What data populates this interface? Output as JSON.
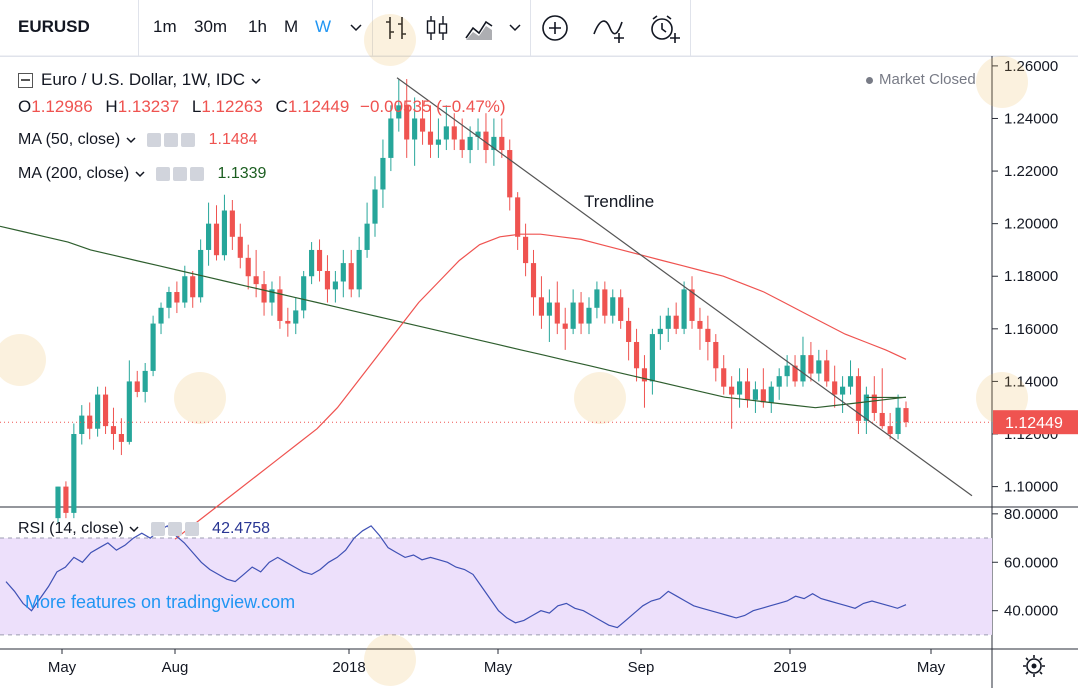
{
  "toolbar": {
    "symbol": "EURUSD",
    "intervals": [
      "1m",
      "30m",
      "1h",
      "M",
      "W"
    ],
    "active_interval": "W",
    "accent": "#2196f3"
  },
  "legend": {
    "title": "Euro / U.S. Dollar, 1W, IDC",
    "ohlc": {
      "o_label": "O",
      "o": "1.12986",
      "h_label": "H",
      "h": "1.13237",
      "l_label": "L",
      "l": "1.12263",
      "c_label": "C",
      "c": "1.12449",
      "change": "−0.00535 (−0.47%)"
    },
    "market_status": "Market Closed",
    "ma50": {
      "label": "MA (50, close)",
      "value": "1.1484",
      "color": "#ef5350"
    },
    "ma200": {
      "label": "MA (200, close)",
      "value": "1.1339",
      "color": "#1b5e20"
    },
    "rsi": {
      "label": "RSI (14, close)",
      "value": "42.4758",
      "color": "#283593"
    }
  },
  "watermark": "More features on tradingview.com",
  "chart_data": {
    "type": "candlestick",
    "price_axis_ticks": [
      "1.26000",
      "1.24000",
      "1.22000",
      "1.20000",
      "1.18000",
      "1.16000",
      "1.14000",
      "1.12000",
      "1.10000"
    ],
    "price_range": [
      1.093,
      1.263
    ],
    "last_price": "1.12449",
    "rsi_axis_ticks": [
      "80.0000",
      "60.0000",
      "40.0000"
    ],
    "rsi_range": [
      25,
      82
    ],
    "rsi_band": [
      30,
      70
    ],
    "x_labels": [
      "May",
      "Aug",
      "2018",
      "May",
      "Sep",
      "2019",
      "May"
    ],
    "annotation": "Trendline",
    "trendline": {
      "from": [
        "2018-01-22",
        1.2555
      ],
      "to": [
        "2019-05-20",
        1.0965
      ]
    },
    "colors": {
      "up": "#26a69a",
      "down": "#ef5350",
      "ma50": "#ef5350",
      "ma200": "#2e5e2e",
      "rsi": "#3f51b5",
      "trendline": "#555555"
    },
    "candles": [
      {
        "o": 1.088,
        "h": 1.1,
        "l": 1.086,
        "c": 1.1
      },
      {
        "o": 1.1,
        "h": 1.102,
        "l": 1.088,
        "c": 1.09
      },
      {
        "o": 1.09,
        "h": 1.124,
        "l": 1.088,
        "c": 1.12
      },
      {
        "o": 1.12,
        "h": 1.131,
        "l": 1.116,
        "c": 1.127
      },
      {
        "o": 1.127,
        "h": 1.132,
        "l": 1.118,
        "c": 1.122
      },
      {
        "o": 1.122,
        "h": 1.138,
        "l": 1.119,
        "c": 1.135
      },
      {
        "o": 1.135,
        "h": 1.138,
        "l": 1.12,
        "c": 1.123
      },
      {
        "o": 1.123,
        "h": 1.13,
        "l": 1.114,
        "c": 1.12
      },
      {
        "o": 1.12,
        "h": 1.126,
        "l": 1.112,
        "c": 1.117
      },
      {
        "o": 1.117,
        "h": 1.148,
        "l": 1.116,
        "c": 1.14
      },
      {
        "o": 1.14,
        "h": 1.144,
        "l": 1.134,
        "c": 1.136
      },
      {
        "o": 1.136,
        "h": 1.147,
        "l": 1.132,
        "c": 1.144
      },
      {
        "o": 1.144,
        "h": 1.165,
        "l": 1.142,
        "c": 1.162
      },
      {
        "o": 1.162,
        "h": 1.17,
        "l": 1.158,
        "c": 1.168
      },
      {
        "o": 1.168,
        "h": 1.176,
        "l": 1.164,
        "c": 1.174
      },
      {
        "o": 1.174,
        "h": 1.178,
        "l": 1.166,
        "c": 1.17
      },
      {
        "o": 1.17,
        "h": 1.184,
        "l": 1.168,
        "c": 1.18
      },
      {
        "o": 1.18,
        "h": 1.182,
        "l": 1.168,
        "c": 1.172
      },
      {
        "o": 1.172,
        "h": 1.194,
        "l": 1.17,
        "c": 1.19
      },
      {
        "o": 1.19,
        "h": 1.208,
        "l": 1.184,
        "c": 1.2
      },
      {
        "o": 1.2,
        "h": 1.207,
        "l": 1.186,
        "c": 1.188
      },
      {
        "o": 1.188,
        "h": 1.211,
        "l": 1.186,
        "c": 1.205
      },
      {
        "o": 1.205,
        "h": 1.209,
        "l": 1.19,
        "c": 1.195
      },
      {
        "o": 1.195,
        "h": 1.2,
        "l": 1.183,
        "c": 1.187
      },
      {
        "o": 1.187,
        "h": 1.192,
        "l": 1.175,
        "c": 1.18
      },
      {
        "o": 1.18,
        "h": 1.19,
        "l": 1.172,
        "c": 1.177
      },
      {
        "o": 1.177,
        "h": 1.182,
        "l": 1.165,
        "c": 1.17
      },
      {
        "o": 1.17,
        "h": 1.178,
        "l": 1.165,
        "c": 1.175
      },
      {
        "o": 1.175,
        "h": 1.18,
        "l": 1.16,
        "c": 1.163
      },
      {
        "o": 1.163,
        "h": 1.168,
        "l": 1.157,
        "c": 1.162
      },
      {
        "o": 1.162,
        "h": 1.172,
        "l": 1.158,
        "c": 1.167
      },
      {
        "o": 1.167,
        "h": 1.182,
        "l": 1.164,
        "c": 1.18
      },
      {
        "o": 1.18,
        "h": 1.193,
        "l": 1.177,
        "c": 1.19
      },
      {
        "o": 1.19,
        "h": 1.194,
        "l": 1.178,
        "c": 1.182
      },
      {
        "o": 1.182,
        "h": 1.188,
        "l": 1.17,
        "c": 1.175
      },
      {
        "o": 1.175,
        "h": 1.182,
        "l": 1.17,
        "c": 1.178
      },
      {
        "o": 1.178,
        "h": 1.19,
        "l": 1.172,
        "c": 1.185
      },
      {
        "o": 1.185,
        "h": 1.19,
        "l": 1.172,
        "c": 1.175
      },
      {
        "o": 1.175,
        "h": 1.195,
        "l": 1.172,
        "c": 1.19
      },
      {
        "o": 1.19,
        "h": 1.208,
        "l": 1.187,
        "c": 1.2
      },
      {
        "o": 1.2,
        "h": 1.218,
        "l": 1.195,
        "c": 1.213
      },
      {
        "o": 1.213,
        "h": 1.232,
        "l": 1.206,
        "c": 1.225
      },
      {
        "o": 1.225,
        "h": 1.245,
        "l": 1.22,
        "c": 1.24
      },
      {
        "o": 1.24,
        "h": 1.255,
        "l": 1.235,
        "c": 1.245
      },
      {
        "o": 1.245,
        "h": 1.255,
        "l": 1.225,
        "c": 1.232
      },
      {
        "o": 1.232,
        "h": 1.248,
        "l": 1.222,
        "c": 1.24
      },
      {
        "o": 1.24,
        "h": 1.247,
        "l": 1.23,
        "c": 1.235
      },
      {
        "o": 1.235,
        "h": 1.245,
        "l": 1.225,
        "c": 1.23
      },
      {
        "o": 1.23,
        "h": 1.24,
        "l": 1.225,
        "c": 1.232
      },
      {
        "o": 1.232,
        "h": 1.245,
        "l": 1.228,
        "c": 1.237
      },
      {
        "o": 1.237,
        "h": 1.242,
        "l": 1.228,
        "c": 1.232
      },
      {
        "o": 1.232,
        "h": 1.24,
        "l": 1.225,
        "c": 1.228
      },
      {
        "o": 1.228,
        "h": 1.237,
        "l": 1.223,
        "c": 1.233
      },
      {
        "o": 1.233,
        "h": 1.24,
        "l": 1.228,
        "c": 1.235
      },
      {
        "o": 1.235,
        "h": 1.242,
        "l": 1.223,
        "c": 1.228
      },
      {
        "o": 1.228,
        "h": 1.24,
        "l": 1.222,
        "c": 1.233
      },
      {
        "o": 1.233,
        "h": 1.24,
        "l": 1.225,
        "c": 1.228
      },
      {
        "o": 1.228,
        "h": 1.232,
        "l": 1.205,
        "c": 1.21
      },
      {
        "o": 1.21,
        "h": 1.212,
        "l": 1.19,
        "c": 1.195
      },
      {
        "o": 1.195,
        "h": 1.2,
        "l": 1.18,
        "c": 1.185
      },
      {
        "o": 1.185,
        "h": 1.19,
        "l": 1.165,
        "c": 1.172
      },
      {
        "o": 1.172,
        "h": 1.18,
        "l": 1.16,
        "c": 1.165
      },
      {
        "o": 1.165,
        "h": 1.175,
        "l": 1.155,
        "c": 1.17
      },
      {
        "o": 1.17,
        "h": 1.178,
        "l": 1.158,
        "c": 1.162
      },
      {
        "o": 1.162,
        "h": 1.168,
        "l": 1.152,
        "c": 1.16
      },
      {
        "o": 1.16,
        "h": 1.175,
        "l": 1.158,
        "c": 1.17
      },
      {
        "o": 1.17,
        "h": 1.174,
        "l": 1.158,
        "c": 1.162
      },
      {
        "o": 1.162,
        "h": 1.172,
        "l": 1.158,
        "c": 1.168
      },
      {
        "o": 1.168,
        "h": 1.178,
        "l": 1.164,
        "c": 1.175
      },
      {
        "o": 1.175,
        "h": 1.178,
        "l": 1.162,
        "c": 1.165
      },
      {
        "o": 1.165,
        "h": 1.175,
        "l": 1.162,
        "c": 1.172
      },
      {
        "o": 1.172,
        "h": 1.175,
        "l": 1.16,
        "c": 1.163
      },
      {
        "o": 1.163,
        "h": 1.168,
        "l": 1.148,
        "c": 1.155
      },
      {
        "o": 1.155,
        "h": 1.16,
        "l": 1.14,
        "c": 1.145
      },
      {
        "o": 1.145,
        "h": 1.15,
        "l": 1.13,
        "c": 1.14
      },
      {
        "o": 1.14,
        "h": 1.16,
        "l": 1.135,
        "c": 1.158
      },
      {
        "o": 1.158,
        "h": 1.165,
        "l": 1.152,
        "c": 1.16
      },
      {
        "o": 1.16,
        "h": 1.168,
        "l": 1.155,
        "c": 1.165
      },
      {
        "o": 1.165,
        "h": 1.17,
        "l": 1.158,
        "c": 1.16
      },
      {
        "o": 1.16,
        "h": 1.178,
        "l": 1.158,
        "c": 1.175
      },
      {
        "o": 1.175,
        "h": 1.18,
        "l": 1.16,
        "c": 1.163
      },
      {
        "o": 1.163,
        "h": 1.168,
        "l": 1.152,
        "c": 1.16
      },
      {
        "o": 1.16,
        "h": 1.165,
        "l": 1.148,
        "c": 1.155
      },
      {
        "o": 1.155,
        "h": 1.158,
        "l": 1.14,
        "c": 1.145
      },
      {
        "o": 1.145,
        "h": 1.15,
        "l": 1.135,
        "c": 1.138
      },
      {
        "o": 1.138,
        "h": 1.142,
        "l": 1.122,
        "c": 1.135
      },
      {
        "o": 1.135,
        "h": 1.145,
        "l": 1.13,
        "c": 1.14
      },
      {
        "o": 1.14,
        "h": 1.145,
        "l": 1.13,
        "c": 1.133
      },
      {
        "o": 1.133,
        "h": 1.14,
        "l": 1.128,
        "c": 1.137
      },
      {
        "o": 1.137,
        "h": 1.145,
        "l": 1.13,
        "c": 1.132
      },
      {
        "o": 1.132,
        "h": 1.14,
        "l": 1.128,
        "c": 1.138
      },
      {
        "o": 1.138,
        "h": 1.145,
        "l": 1.133,
        "c": 1.142
      },
      {
        "o": 1.142,
        "h": 1.15,
        "l": 1.138,
        "c": 1.146
      },
      {
        "o": 1.146,
        "h": 1.15,
        "l": 1.138,
        "c": 1.14
      },
      {
        "o": 1.14,
        "h": 1.157,
        "l": 1.138,
        "c": 1.15
      },
      {
        "o": 1.15,
        "h": 1.155,
        "l": 1.14,
        "c": 1.143
      },
      {
        "o": 1.143,
        "h": 1.152,
        "l": 1.14,
        "c": 1.148
      },
      {
        "o": 1.148,
        "h": 1.152,
        "l": 1.138,
        "c": 1.14
      },
      {
        "o": 1.14,
        "h": 1.146,
        "l": 1.13,
        "c": 1.135
      },
      {
        "o": 1.135,
        "h": 1.142,
        "l": 1.128,
        "c": 1.138
      },
      {
        "o": 1.138,
        "h": 1.148,
        "l": 1.135,
        "c": 1.142
      },
      {
        "o": 1.142,
        "h": 1.145,
        "l": 1.12,
        "c": 1.125
      },
      {
        "o": 1.125,
        "h": 1.138,
        "l": 1.12,
        "c": 1.135
      },
      {
        "o": 1.135,
        "h": 1.142,
        "l": 1.125,
        "c": 1.128
      },
      {
        "o": 1.128,
        "h": 1.145,
        "l": 1.122,
        "c": 1.123
      },
      {
        "o": 1.123,
        "h": 1.128,
        "l": 1.118,
        "c": 1.12
      },
      {
        "o": 1.12,
        "h": 1.135,
        "l": 1.118,
        "c": 1.13
      },
      {
        "o": 1.12986,
        "h": 1.13237,
        "l": 1.12263,
        "c": 1.12449
      }
    ],
    "ma200": [
      1.199,
      1.197,
      1.195,
      1.193,
      1.19,
      1.188,
      1.186,
      1.184,
      1.182,
      1.18,
      1.178,
      1.176,
      1.174,
      1.172,
      1.17,
      1.168,
      1.166,
      1.164,
      1.162,
      1.16,
      1.158,
      1.156,
      1.154,
      1.152,
      1.15,
      1.148,
      1.146,
      1.144,
      1.142,
      1.14,
      1.138,
      1.136,
      1.134,
      1.133,
      1.132,
      1.131,
      1.13,
      1.131,
      1.132,
      1.133,
      1.134
    ],
    "ma50": [
      1.08,
      1.086,
      1.092,
      1.098,
      1.104,
      1.11,
      1.116,
      1.122,
      1.13,
      1.14,
      1.15,
      1.16,
      1.17,
      1.178,
      1.186,
      1.192,
      1.195,
      1.196,
      1.196,
      1.195,
      1.194,
      1.192,
      1.19,
      1.188,
      1.186,
      1.184,
      1.182,
      1.18,
      1.177,
      1.174,
      1.17,
      1.166,
      1.162,
      1.158,
      1.155,
      1.152,
      1.1484
    ],
    "rsi": [
      52,
      48,
      43,
      40,
      45,
      50,
      56,
      58,
      62,
      60,
      64,
      66,
      68,
      65,
      67,
      70,
      72,
      70,
      73,
      75,
      71,
      68,
      64,
      60,
      57,
      55,
      53,
      52,
      55,
      58,
      56,
      60,
      62,
      60,
      58,
      56,
      55,
      57,
      60,
      62,
      65,
      70,
      73,
      75,
      71,
      66,
      64,
      62,
      63,
      61,
      62,
      61,
      60,
      58,
      57,
      55,
      50,
      45,
      40,
      37,
      35,
      36,
      38,
      40,
      39,
      42,
      43,
      41,
      40,
      38,
      36,
      34,
      33,
      36,
      39,
      42,
      44,
      45,
      48,
      46,
      44,
      42,
      41,
      40,
      39,
      38,
      37,
      38,
      40,
      41,
      42,
      43,
      44,
      46,
      45,
      47,
      45,
      44,
      43,
      42,
      41,
      43,
      44,
      43,
      42,
      41,
      42.4758
    ]
  },
  "time_axis_label": "gear-icon"
}
